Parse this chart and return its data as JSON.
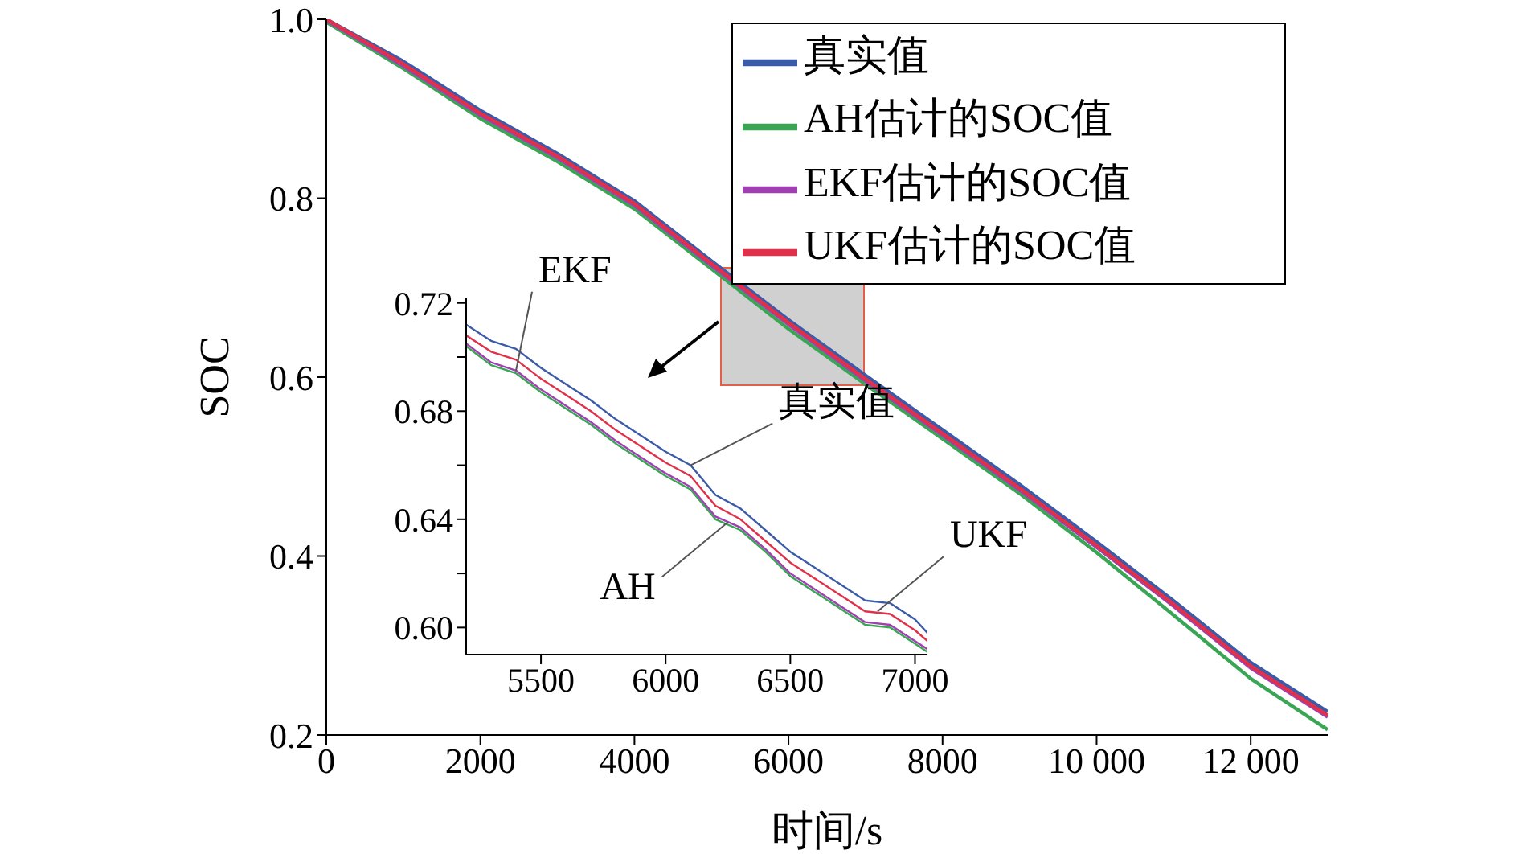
{
  "chart_data": [
    {
      "type": "line",
      "xlabel": "时间/s",
      "ylabel": "SOC",
      "xlim": [
        0,
        13000
      ],
      "ylim": [
        0.2,
        1.0
      ],
      "xticks": [
        0,
        2000,
        4000,
        6000,
        8000,
        {
          "value": 10000,
          "label": "10 000"
        },
        {
          "value": 12000,
          "label": "12 000"
        }
      ],
      "yticks": [
        0.2,
        0.4,
        0.6,
        0.8,
        {
          "value": 1.0,
          "label": "1.0"
        }
      ],
      "x": [
        0,
        1000,
        2000,
        3000,
        4000,
        5000,
        6000,
        7000,
        8000,
        9000,
        10000,
        11000,
        12000,
        13000
      ],
      "legend": "top right",
      "marker": "none",
      "line_style": "solid",
      "series": [
        {
          "name": "真实值",
          "color": "#3b5ba9",
          "values": [
            1.0,
            0.953,
            0.898,
            0.85,
            0.797,
            0.73,
            0.664,
            0.602,
            0.541,
            0.48,
            0.416,
            0.35,
            0.281,
            0.226
          ]
        },
        {
          "name": "AH估计的SOC值",
          "color": "#3aa655",
          "values": [
            0.997,
            0.945,
            0.889,
            0.841,
            0.788,
            0.721,
            0.654,
            0.592,
            0.531,
            0.47,
            0.404,
            0.334,
            0.263,
            0.206
          ]
        },
        {
          "name": "EKF估计的SOC值",
          "color": "#a040b0",
          "values": [
            0.999,
            0.948,
            0.893,
            0.845,
            0.792,
            0.725,
            0.659,
            0.596,
            0.535,
            0.474,
            0.41,
            0.344,
            0.275,
            0.22
          ]
        },
        {
          "name": "UKF估计的SOC值",
          "color": "#e0304a",
          "values": [
            1.0,
            0.95,
            0.895,
            0.847,
            0.794,
            0.727,
            0.661,
            0.598,
            0.537,
            0.476,
            0.412,
            0.346,
            0.277,
            0.222
          ]
        }
      ]
    },
    {
      "type": "line",
      "xlim": [
        5200,
        7050
      ],
      "ylim": [
        0.59,
        0.722
      ],
      "xticks": [
        5500,
        6000,
        6500,
        7000
      ],
      "yticks": [
        {
          "value": 0.6,
          "label": "0.60"
        },
        {
          "value": 0.62,
          "label": null
        },
        {
          "value": 0.64,
          "label": "0.64"
        },
        {
          "value": 0.66,
          "label": null
        },
        {
          "value": 0.68,
          "label": "0.68"
        },
        {
          "value": 0.7,
          "label": null
        },
        {
          "value": 0.72,
          "label": "0.72"
        }
      ],
      "x": [
        5200,
        5300,
        5400,
        5500,
        5600,
        5700,
        5800,
        5900,
        6000,
        6100,
        6200,
        6300,
        6400,
        6500,
        6600,
        6700,
        6800,
        6900,
        7000,
        7050
      ],
      "marker": "none",
      "line_style": "solid",
      "series": [
        {
          "color": "#3b5ba9",
          "values": [
            0.712,
            0.706,
            0.703,
            0.696,
            0.69,
            0.684,
            0.677,
            0.671,
            0.665,
            0.66,
            0.649,
            0.644,
            0.636,
            0.628,
            0.622,
            0.616,
            0.61,
            0.609,
            0.603,
            0.598
          ]
        },
        {
          "color": "#3aa655",
          "values": [
            0.704,
            0.697,
            0.694,
            0.687,
            0.681,
            0.675,
            0.668,
            0.662,
            0.656,
            0.651,
            0.64,
            0.636,
            0.628,
            0.619,
            0.613,
            0.607,
            0.601,
            0.6,
            0.594,
            0.591
          ]
        },
        {
          "color": "#a040b0",
          "values": [
            0.705,
            0.698,
            0.695,
            0.688,
            0.682,
            0.676,
            0.669,
            0.663,
            0.657,
            0.652,
            0.641,
            0.637,
            0.629,
            0.62,
            0.614,
            0.608,
            0.602,
            0.601,
            0.595,
            0.592
          ]
        },
        {
          "color": "#e0304a",
          "values": [
            0.708,
            0.702,
            0.699,
            0.692,
            0.686,
            0.68,
            0.673,
            0.667,
            0.661,
            0.656,
            0.645,
            0.64,
            0.632,
            0.624,
            0.618,
            0.612,
            0.606,
            0.605,
            0.599,
            0.595
          ]
        }
      ],
      "annotations": [
        {
          "text": "EKF",
          "x": 5400,
          "y": 0.695
        },
        {
          "text": "真实值",
          "x": 6100,
          "y": 0.66
        },
        {
          "text": "AH",
          "x": 6250,
          "y": 0.639
        },
        {
          "text": "UKF",
          "x": 6850,
          "y": 0.606
        }
      ]
    }
  ]
}
